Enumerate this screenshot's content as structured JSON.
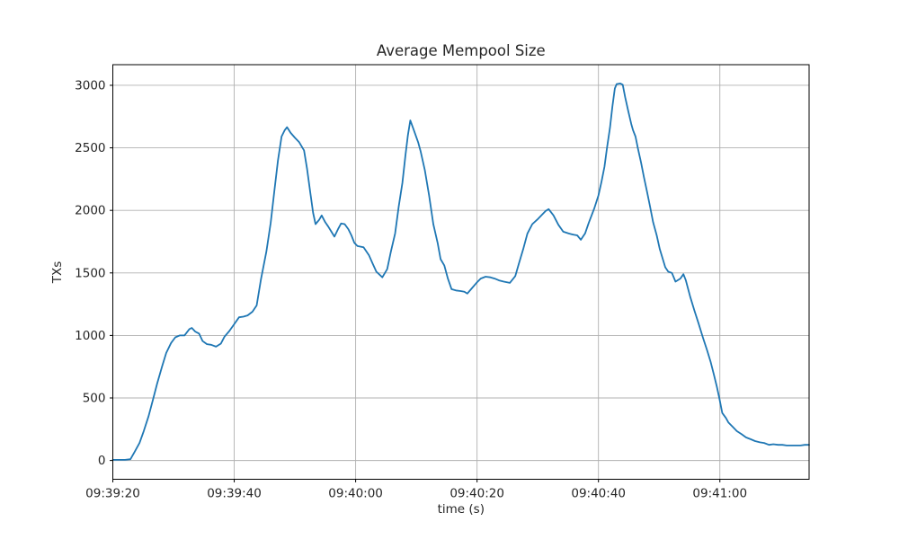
{
  "chart_data": {
    "type": "line",
    "title": "Average Mempool Size",
    "xlabel": "time (s)",
    "ylabel": "TXs",
    "x_unit": "seconds after 09:39:20",
    "xlim": [
      0,
      114.7
    ],
    "ylim": [
      -150,
      3165
    ],
    "grid": true,
    "legend_position": "none",
    "line_color": "#1f77b4",
    "grid_color": "#b0b0b0",
    "spine_color": "#000000",
    "background": "#ffffff",
    "y_ticks": [
      0,
      500,
      1000,
      1500,
      2000,
      2500,
      3000
    ],
    "x_ticks": [
      {
        "t": 0,
        "label": "09:39:20"
      },
      {
        "t": 20,
        "label": "09:39:40"
      },
      {
        "t": 40,
        "label": "09:40:00"
      },
      {
        "t": 60,
        "label": "09:40:20"
      },
      {
        "t": 80,
        "label": "09:40:40"
      },
      {
        "t": 100,
        "label": "09:41:00"
      }
    ],
    "series": [
      {
        "name": "average-mempool-size",
        "points": [
          [
            0,
            5
          ],
          [
            1,
            5
          ],
          [
            2,
            5
          ],
          [
            2.9,
            10
          ],
          [
            3.6,
            70
          ],
          [
            4.4,
            140
          ],
          [
            5.1,
            235
          ],
          [
            5.9,
            355
          ],
          [
            6.6,
            485
          ],
          [
            7.3,
            615
          ],
          [
            8.1,
            750
          ],
          [
            8.8,
            860
          ],
          [
            9.6,
            940
          ],
          [
            10.3,
            985
          ],
          [
            11,
            1000
          ],
          [
            11.8,
            1000
          ],
          [
            12.6,
            1050
          ],
          [
            13,
            1060
          ],
          [
            13.6,
            1030
          ],
          [
            14.2,
            1015
          ],
          [
            14.8,
            955
          ],
          [
            15.5,
            930
          ],
          [
            16.2,
            925
          ],
          [
            17,
            910
          ],
          [
            17.8,
            935
          ],
          [
            18.4,
            990
          ],
          [
            19.2,
            1035
          ],
          [
            20,
            1090
          ],
          [
            20.8,
            1145
          ],
          [
            21.5,
            1150
          ],
          [
            22.2,
            1160
          ],
          [
            23,
            1190
          ],
          [
            23.7,
            1240
          ],
          [
            24.4,
            1450
          ],
          [
            25.3,
            1670
          ],
          [
            26,
            1900
          ],
          [
            26.6,
            2150
          ],
          [
            27.2,
            2400
          ],
          [
            27.8,
            2590
          ],
          [
            28.3,
            2640
          ],
          [
            28.7,
            2665
          ],
          [
            29.3,
            2620
          ],
          [
            30,
            2580
          ],
          [
            30.7,
            2545
          ],
          [
            31.5,
            2480
          ],
          [
            32,
            2330
          ],
          [
            32.5,
            2150
          ],
          [
            33,
            1980
          ],
          [
            33.4,
            1890
          ],
          [
            34,
            1925
          ],
          [
            34.4,
            1960
          ],
          [
            35,
            1905
          ],
          [
            35.5,
            1870
          ],
          [
            36,
            1830
          ],
          [
            36.5,
            1790
          ],
          [
            37.1,
            1850
          ],
          [
            37.6,
            1895
          ],
          [
            38.2,
            1890
          ],
          [
            38.8,
            1850
          ],
          [
            39.3,
            1800
          ],
          [
            39.8,
            1740
          ],
          [
            40.3,
            1715
          ],
          [
            41.3,
            1705
          ],
          [
            42.2,
            1640
          ],
          [
            42.8,
            1575
          ],
          [
            43.4,
            1510
          ],
          [
            44.4,
            1465
          ],
          [
            45.2,
            1530
          ],
          [
            45.8,
            1670
          ],
          [
            46.5,
            1815
          ],
          [
            47.1,
            2030
          ],
          [
            47.7,
            2220
          ],
          [
            48.2,
            2440
          ],
          [
            48.6,
            2600
          ],
          [
            49,
            2720
          ],
          [
            49.6,
            2640
          ],
          [
            50.3,
            2545
          ],
          [
            50.7,
            2475
          ],
          [
            51.4,
            2320
          ],
          [
            52.1,
            2120
          ],
          [
            52.8,
            1890
          ],
          [
            53.5,
            1740
          ],
          [
            54,
            1610
          ],
          [
            54.6,
            1560
          ],
          [
            55.2,
            1455
          ],
          [
            55.8,
            1370
          ],
          [
            56.5,
            1360
          ],
          [
            57.3,
            1355
          ],
          [
            57.9,
            1350
          ],
          [
            58.4,
            1335
          ],
          [
            59.2,
            1380
          ],
          [
            59.9,
            1420
          ],
          [
            60.6,
            1455
          ],
          [
            61.4,
            1470
          ],
          [
            62.2,
            1465
          ],
          [
            62.9,
            1455
          ],
          [
            63.6,
            1440
          ],
          [
            64.4,
            1430
          ],
          [
            65.4,
            1420
          ],
          [
            66.3,
            1475
          ],
          [
            66.9,
            1575
          ],
          [
            67.6,
            1690
          ],
          [
            68.3,
            1815
          ],
          [
            69.1,
            1890
          ],
          [
            69.9,
            1925
          ],
          [
            70.6,
            1960
          ],
          [
            71.3,
            1995
          ],
          [
            71.8,
            2010
          ],
          [
            72.6,
            1960
          ],
          [
            73.4,
            1885
          ],
          [
            74.2,
            1830
          ],
          [
            75.1,
            1815
          ],
          [
            75.9,
            1805
          ],
          [
            76.5,
            1800
          ],
          [
            77.1,
            1765
          ],
          [
            77.8,
            1815
          ],
          [
            78.4,
            1900
          ],
          [
            79.3,
            2015
          ],
          [
            80,
            2120
          ],
          [
            80.5,
            2230
          ],
          [
            81,
            2350
          ],
          [
            81.4,
            2495
          ],
          [
            81.9,
            2660
          ],
          [
            82.3,
            2830
          ],
          [
            82.7,
            2975
          ],
          [
            83,
            3010
          ],
          [
            83.6,
            3015
          ],
          [
            84,
            3005
          ],
          [
            84.4,
            2905
          ],
          [
            84.9,
            2795
          ],
          [
            85.4,
            2690
          ],
          [
            85.7,
            2640
          ],
          [
            86.1,
            2590
          ],
          [
            86.5,
            2495
          ],
          [
            87,
            2385
          ],
          [
            87.5,
            2265
          ],
          [
            88,
            2150
          ],
          [
            88.5,
            2030
          ],
          [
            89,
            1905
          ],
          [
            89.6,
            1800
          ],
          [
            90.1,
            1690
          ],
          [
            90.6,
            1610
          ],
          [
            91,
            1545
          ],
          [
            91.5,
            1510
          ],
          [
            92.1,
            1500
          ],
          [
            92.7,
            1430
          ],
          [
            93.5,
            1455
          ],
          [
            94,
            1490
          ],
          [
            94.4,
            1440
          ],
          [
            95.1,
            1310
          ],
          [
            95.8,
            1200
          ],
          [
            96.5,
            1095
          ],
          [
            97.2,
            985
          ],
          [
            97.9,
            880
          ],
          [
            98.5,
            785
          ],
          [
            99,
            690
          ],
          [
            99.5,
            590
          ],
          [
            99.9,
            500
          ],
          [
            100.4,
            380
          ],
          [
            101,
            340
          ],
          [
            101.4,
            305
          ],
          [
            102.1,
            270
          ],
          [
            102.8,
            235
          ],
          [
            103.6,
            210
          ],
          [
            104.3,
            185
          ],
          [
            105.1,
            170
          ],
          [
            105.8,
            155
          ],
          [
            106.6,
            145
          ],
          [
            107.3,
            140
          ],
          [
            108.1,
            125
          ],
          [
            108.8,
            130
          ],
          [
            109.6,
            125
          ],
          [
            110.3,
            125
          ],
          [
            111,
            120
          ],
          [
            111.8,
            120
          ],
          [
            112.5,
            120
          ],
          [
            113.3,
            120
          ],
          [
            114,
            125
          ],
          [
            114.7,
            125
          ]
        ]
      }
    ]
  }
}
